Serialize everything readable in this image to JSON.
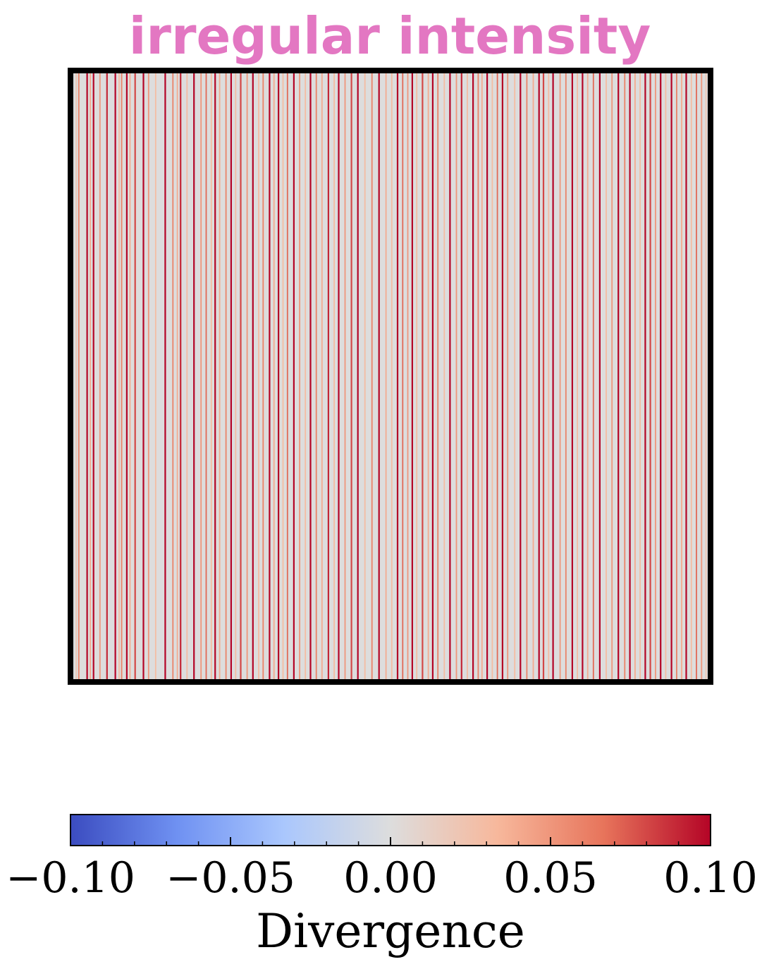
{
  "chart_data": {
    "type": "heatmap",
    "title": "irregular intensity",
    "title_color": "#e377c2",
    "colormap": "coolwarm",
    "colormap_stops": [
      "#3b4cc0",
      "#6f91f2",
      "#aac7fd",
      "#dddddd",
      "#f7b89c",
      "#e7745b",
      "#b40426"
    ],
    "color_range": [
      -0.1,
      0.1
    ],
    "x_range": [
      0,
      1
    ],
    "grid": false,
    "axis_ticks_visible": false,
    "background_value": 0.0,
    "line_positions": [
      0.009,
      0.013,
      0.026,
      0.031,
      0.036,
      0.046,
      0.057,
      0.07,
      0.076,
      0.08,
      0.088,
      0.093,
      0.101,
      0.114,
      0.122,
      0.133,
      0.148,
      0.16,
      0.167,
      0.172,
      0.182,
      0.193,
      0.204,
      0.212,
      0.22,
      0.226,
      0.233,
      0.243,
      0.251,
      0.258,
      0.266,
      0.276,
      0.285,
      0.294,
      0.301,
      0.311,
      0.318,
      0.325,
      0.332,
      0.339,
      0.349,
      0.358,
      0.367,
      0.375,
      0.384,
      0.393,
      0.403,
      0.412,
      0.419,
      0.429,
      0.439,
      0.449,
      0.46,
      0.471,
      0.482,
      0.493,
      0.502,
      0.511,
      0.519,
      0.527,
      0.534,
      0.541,
      0.55,
      0.559,
      0.566,
      0.574,
      0.584,
      0.593,
      0.603,
      0.611,
      0.62,
      0.629,
      0.637,
      0.643,
      0.651,
      0.659,
      0.667,
      0.675,
      0.683,
      0.694,
      0.703,
      0.713,
      0.723,
      0.732,
      0.739,
      0.747,
      0.754,
      0.765,
      0.774,
      0.784,
      0.792,
      0.8,
      0.808,
      0.817,
      0.827,
      0.837,
      0.846,
      0.856,
      0.866,
      0.874,
      0.882,
      0.89,
      0.898,
      0.906,
      0.914,
      0.922,
      0.93,
      0.939,
      0.947,
      0.955,
      0.962,
      0.97,
      0.978,
      0.986,
      0.993
    ],
    "line_values": [
      0.02,
      0.06,
      0.1,
      0.04,
      0.1,
      0.05,
      0.09,
      0.1,
      0.03,
      0.06,
      0.1,
      0.04,
      0.08,
      0.1,
      0.05,
      0.03,
      0.1,
      0.06,
      0.04,
      0.09,
      0.03,
      0.1,
      0.05,
      0.07,
      0.03,
      0.1,
      0.04,
      0.06,
      0.1,
      0.03,
      0.08,
      0.05,
      0.1,
      0.03,
      0.06,
      0.1,
      0.04,
      0.1,
      0.03,
      0.07,
      0.1,
      0.05,
      0.03,
      0.1,
      0.06,
      0.04,
      0.09,
      0.03,
      0.1,
      0.05,
      0.08,
      0.1,
      0.03,
      0.06,
      0.1,
      0.04,
      0.03,
      0.1,
      0.07,
      0.05,
      0.1,
      0.03,
      0.08,
      0.04,
      0.1,
      0.06,
      0.03,
      0.1,
      0.05,
      0.09,
      0.03,
      0.1,
      0.06,
      0.04,
      0.1,
      0.03,
      0.07,
      0.1,
      0.05,
      0.03,
      0.1,
      0.06,
      0.04,
      0.1,
      0.08,
      0.03,
      0.1,
      0.05,
      0.06,
      0.1,
      0.03,
      0.1,
      0.04,
      0.07,
      0.1,
      0.03,
      0.05,
      0.1,
      0.06,
      0.1,
      0.04,
      0.03,
      0.1,
      0.08,
      0.05,
      0.1,
      0.03,
      0.1,
      0.06,
      0.04,
      0.1,
      0.03,
      0.07,
      0.05,
      0.02
    ],
    "colorbar": {
      "orientation": "horizontal",
      "label": "Divergence",
      "major_ticks": [
        -0.1,
        -0.05,
        0.0,
        0.05,
        0.1
      ],
      "tick_labels": [
        "−0.10",
        "−0.05",
        "0.00",
        "0.05",
        "0.10"
      ],
      "minor_ticks": [
        -0.09,
        -0.08,
        -0.07,
        -0.06,
        -0.04,
        -0.03,
        -0.02,
        -0.01,
        0.01,
        0.02,
        0.03,
        0.04,
        0.06,
        0.07,
        0.08,
        0.09
      ]
    }
  }
}
